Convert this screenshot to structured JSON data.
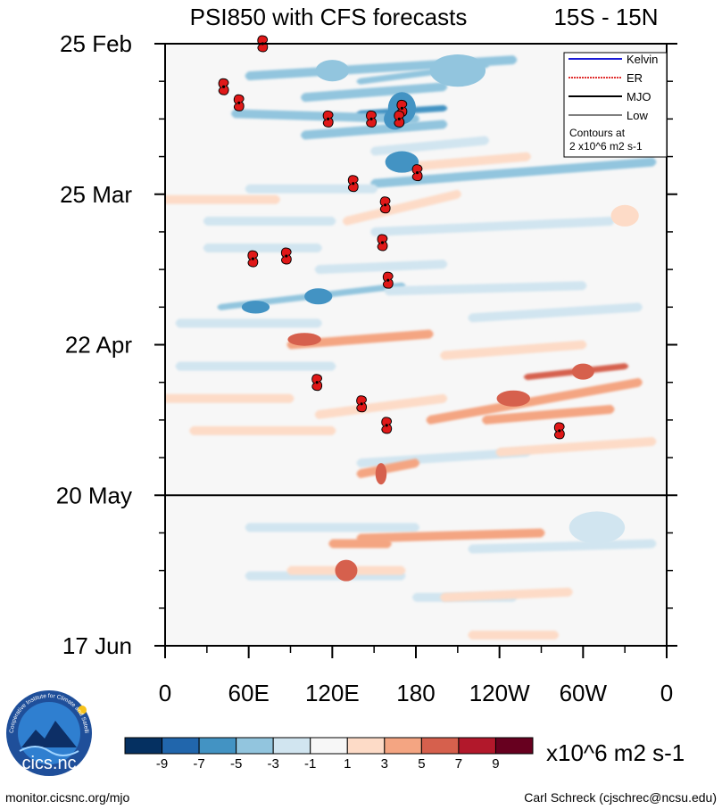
{
  "chart_data": {
    "type": "heatmap",
    "title": "PSI850 with CFS forecasts",
    "region": "15S - 15N",
    "y_tick_labels": [
      "25 Feb",
      "25 Mar",
      "22 Apr",
      "20 May",
      "17 Jun"
    ],
    "y_ticks_days": [
      0,
      28,
      56,
      84,
      112
    ],
    "forecast_start_day": 84,
    "x_tick_labels": [
      "0",
      "60E",
      "120E",
      "180",
      "120W",
      "60W",
      "0"
    ],
    "x_ticks_lon": [
      0,
      60,
      120,
      180,
      240,
      300,
      360
    ],
    "legend": {
      "entries": [
        {
          "name": "Kelvin",
          "color": "#1a1ad6",
          "dashed": false
        },
        {
          "name": "ER",
          "color": "#e03030",
          "dashed": true
        },
        {
          "name": "MJO",
          "color": "#000000",
          "dashed": false
        },
        {
          "name": "Low",
          "color": "#808080",
          "dashed": false
        }
      ],
      "note_line1": "Contours at",
      "note_line2": "2 x10^6 m2 s-1"
    },
    "colorbar": {
      "labels": [
        "-9",
        "-7",
        "-5",
        "-3",
        "-1",
        "1",
        "3",
        "5",
        "7",
        "9"
      ],
      "colors": [
        "#053061",
        "#2166ac",
        "#4393c3",
        "#92c5de",
        "#d1e5f0",
        "#f7f7f7",
        "#fddbc7",
        "#f4a582",
        "#d6604d",
        "#b2182b",
        "#67001f"
      ],
      "units": "x10^6 m2 s-1"
    },
    "cyclones": [
      {
        "lon": 70,
        "day": 0
      },
      {
        "lon": 42,
        "day": 8
      },
      {
        "lon": 53,
        "day": 11
      },
      {
        "lon": 117,
        "day": 14
      },
      {
        "lon": 148,
        "day": 14
      },
      {
        "lon": 170,
        "day": 12
      },
      {
        "lon": 168,
        "day": 14
      },
      {
        "lon": 181,
        "day": 24
      },
      {
        "lon": 135,
        "day": 26
      },
      {
        "lon": 158,
        "day": 30
      },
      {
        "lon": 156,
        "day": 37
      },
      {
        "lon": 63,
        "day": 40
      },
      {
        "lon": 87,
        "day": 39.5
      },
      {
        "lon": 160,
        "day": 44
      },
      {
        "lon": 109,
        "day": 63
      },
      {
        "lon": 141,
        "day": 67
      },
      {
        "lon": 159,
        "day": 71
      },
      {
        "lon": 283,
        "day": 72
      }
    ],
    "bands": [
      {
        "lon1": 60,
        "lon2": 250,
        "day1": 6,
        "day2": 3,
        "value": -3.5
      },
      {
        "lon1": 100,
        "lon2": 200,
        "day1": 10,
        "day2": 8,
        "value": -4
      },
      {
        "lon1": 140,
        "lon2": 230,
        "day1": 7,
        "day2": 4,
        "value": -5
      },
      {
        "lon1": 140,
        "lon2": 200,
        "day1": 13,
        "day2": 12,
        "value": -6
      },
      {
        "lon1": 50,
        "lon2": 180,
        "day1": 13,
        "day2": 14,
        "value": -3.5
      },
      {
        "lon1": 100,
        "lon2": 200,
        "day1": 17,
        "day2": 15,
        "value": -4
      },
      {
        "lon1": 150,
        "lon2": 230,
        "day1": 20,
        "day2": 18,
        "value": -3
      },
      {
        "lon1": 150,
        "lon2": 350,
        "day1": 26,
        "day2": 22,
        "value": -4.5
      },
      {
        "lon1": 60,
        "lon2": 150,
        "day1": 27,
        "day2": 27,
        "value": -2.5
      },
      {
        "lon1": 30,
        "lon2": 120,
        "day1": 33,
        "day2": 33,
        "value": -2.5
      },
      {
        "lon1": 150,
        "lon2": 320,
        "day1": 35,
        "day2": 33,
        "value": -2.5
      },
      {
        "lon1": 30,
        "lon2": 110,
        "day1": 38,
        "day2": 38,
        "value": -2.5
      },
      {
        "lon1": 110,
        "lon2": 200,
        "day1": 42,
        "day2": 41,
        "value": -3
      },
      {
        "lon1": 40,
        "lon2": 170,
        "day1": 49,
        "day2": 45,
        "value": -5
      },
      {
        "lon1": 10,
        "lon2": 110,
        "day1": 52,
        "day2": 52,
        "value": -2.5
      },
      {
        "lon1": 160,
        "lon2": 300,
        "day1": 46,
        "day2": 45,
        "value": -2.5
      },
      {
        "lon1": 10,
        "lon2": 120,
        "day1": 60,
        "day2": 60,
        "value": -2.5
      },
      {
        "lon1": 140,
        "lon2": 260,
        "day1": 78,
        "day2": 76,
        "value": -3
      },
      {
        "lon1": 220,
        "lon2": 340,
        "day1": 51,
        "day2": 49,
        "value": -2.5
      },
      {
        "lon1": 60,
        "lon2": 180,
        "day1": 90,
        "day2": 90,
        "value": -2.5
      },
      {
        "lon1": 220,
        "lon2": 350,
        "day1": 94,
        "day2": 93,
        "value": -2.5
      },
      {
        "lon1": 60,
        "lon2": 170,
        "day1": 99,
        "day2": 99,
        "value": -2.5
      },
      {
        "lon1": 180,
        "lon2": 250,
        "day1": 103,
        "day2": 103,
        "value": -2.5
      },
      {
        "lon1": 130,
        "lon2": 210,
        "day1": 33,
        "day2": 28,
        "value": 2.5
      },
      {
        "lon1": 170,
        "lon2": 260,
        "day1": 23,
        "day2": 21,
        "value": 2.5
      },
      {
        "lon1": 0,
        "lon2": 80,
        "day1": 29,
        "day2": 29,
        "value": 2.5
      },
      {
        "lon1": 90,
        "lon2": 190,
        "day1": 56,
        "day2": 54,
        "value": 3.5
      },
      {
        "lon1": 200,
        "lon2": 300,
        "day1": 58,
        "day2": 56,
        "value": 2.5
      },
      {
        "lon1": 190,
        "lon2": 340,
        "day1": 70,
        "day2": 63,
        "value": 4
      },
      {
        "lon1": 260,
        "lon2": 330,
        "day1": 62,
        "day2": 60,
        "value": 5
      },
      {
        "lon1": 230,
        "lon2": 320,
        "day1": 70,
        "day2": 68,
        "value": 3
      },
      {
        "lon1": 0,
        "lon2": 90,
        "day1": 66,
        "day2": 66,
        "value": 2.5
      },
      {
        "lon1": 110,
        "lon2": 200,
        "day1": 69,
        "day2": 66,
        "value": 2.5
      },
      {
        "lon1": 20,
        "lon2": 120,
        "day1": 72,
        "day2": 72,
        "value": 2.5
      },
      {
        "lon1": 140,
        "lon2": 180,
        "day1": 80,
        "day2": 78,
        "value": 4
      },
      {
        "lon1": 240,
        "lon2": 350,
        "day1": 76,
        "day2": 74,
        "value": 2.5
      },
      {
        "lon1": 140,
        "lon2": 270,
        "day1": 92,
        "day2": 91,
        "value": 3
      },
      {
        "lon1": 120,
        "lon2": 160,
        "day1": 93,
        "day2": 93,
        "value": 4
      },
      {
        "lon1": 90,
        "lon2": 170,
        "day1": 98,
        "day2": 98,
        "value": 2.5
      },
      {
        "lon1": 200,
        "lon2": 290,
        "day1": 103,
        "day2": 102,
        "value": 2.5
      },
      {
        "lon1": 220,
        "lon2": 280,
        "day1": 110,
        "day2": 110,
        "value": 2.5
      }
    ],
    "blobs": [
      {
        "lon": 170,
        "day": 12,
        "rx": 10,
        "ry": 3,
        "value": -7
      },
      {
        "lon": 165,
        "day": 14,
        "rx": 8,
        "ry": 2,
        "value": -7
      },
      {
        "lon": 170,
        "day": 22,
        "rx": 12,
        "ry": 2,
        "value": -6
      },
      {
        "lon": 110,
        "day": 47,
        "rx": 10,
        "ry": 1.5,
        "value": -6
      },
      {
        "lon": 65,
        "day": 49,
        "rx": 10,
        "ry": 1.2,
        "value": -6
      },
      {
        "lon": 120,
        "day": 5,
        "rx": 12,
        "ry": 2,
        "value": -5
      },
      {
        "lon": 130,
        "day": 98,
        "rx": 8,
        "ry": 2,
        "value": 5
      },
      {
        "lon": 155,
        "day": 80,
        "rx": 4,
        "ry": 2,
        "value": 6
      },
      {
        "lon": 300,
        "day": 61,
        "rx": 8,
        "ry": 1.5,
        "value": 6
      },
      {
        "lon": 250,
        "day": 66,
        "rx": 12,
        "ry": 1.5,
        "value": 5
      },
      {
        "lon": 100,
        "day": 55,
        "rx": 12,
        "ry": 1.2,
        "value": 5
      },
      {
        "lon": 330,
        "day": 32,
        "rx": 10,
        "ry": 2,
        "value": 2.5
      },
      {
        "lon": 310,
        "day": 90,
        "rx": 20,
        "ry": 3,
        "value": -2.5
      },
      {
        "lon": 210,
        "day": 5,
        "rx": 20,
        "ry": 3,
        "value": -3.5
      }
    ]
  },
  "logo": {
    "text": "cics.nc",
    "ring_text": "Cooperative Institute for Climate and Satellites"
  },
  "footer": {
    "left": "monitor.cicsnc.org/mjo",
    "right": "Carl Schreck (cjschrec@ncsu.edu)"
  }
}
